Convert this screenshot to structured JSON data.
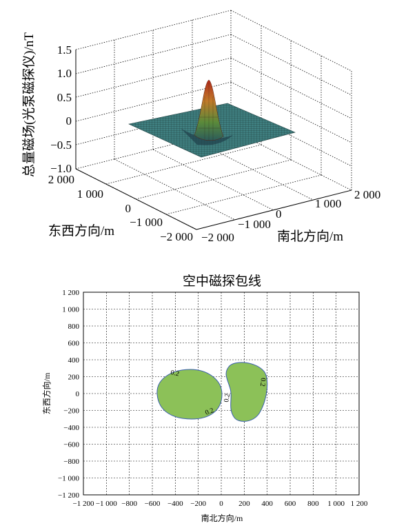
{
  "chart_data": [
    {
      "type": "surface",
      "zlabel": "总量磁场(光泵磁探仪)/nT",
      "xlabel": "南北方向/m",
      "ylabel": "东西方向/m",
      "zticks": [
        "1.5",
        "1.0",
        "0.5",
        "0",
        "−0.5",
        "−1.0"
      ],
      "xticks": [
        "−2 000",
        "−1 000",
        "0",
        "1 000",
        "2 000"
      ],
      "yticks": [
        "2 000",
        "1 000",
        "0",
        "−1 000",
        "−2 000"
      ],
      "zlim": [
        -1.0,
        1.5
      ],
      "xlim": [
        -2000,
        2000
      ],
      "ylim": [
        -2000,
        2000
      ],
      "peak": {
        "x": 0,
        "y": 0,
        "z": 1.0
      },
      "grid": true
    },
    {
      "type": "contour",
      "title": "空中磁探包线",
      "xlabel": "南北方向/m",
      "ylabel": "东西方向/m",
      "xlim": [
        -1200,
        1200
      ],
      "ylim": [
        -1200,
        1200
      ],
      "xticks": [
        "−1 200",
        "−1 000",
        "−800",
        "−600",
        "−400",
        "−200",
        "0",
        "200",
        "400",
        "600",
        "800",
        "1 000",
        "1 200"
      ],
      "yticks": [
        "1 200",
        "1 000",
        "800",
        "600",
        "400",
        "200",
        "0",
        "−200",
        "−400",
        "−600",
        "−800",
        "−1 000",
        "−1 200"
      ],
      "grid": true,
      "fill_color": "#8cc158",
      "line_color": "#3a5fb0",
      "contour_labels": [
        "0.2",
        "0.2",
        "0.2",
        "0.2"
      ],
      "contour_level": 0.2
    }
  ]
}
